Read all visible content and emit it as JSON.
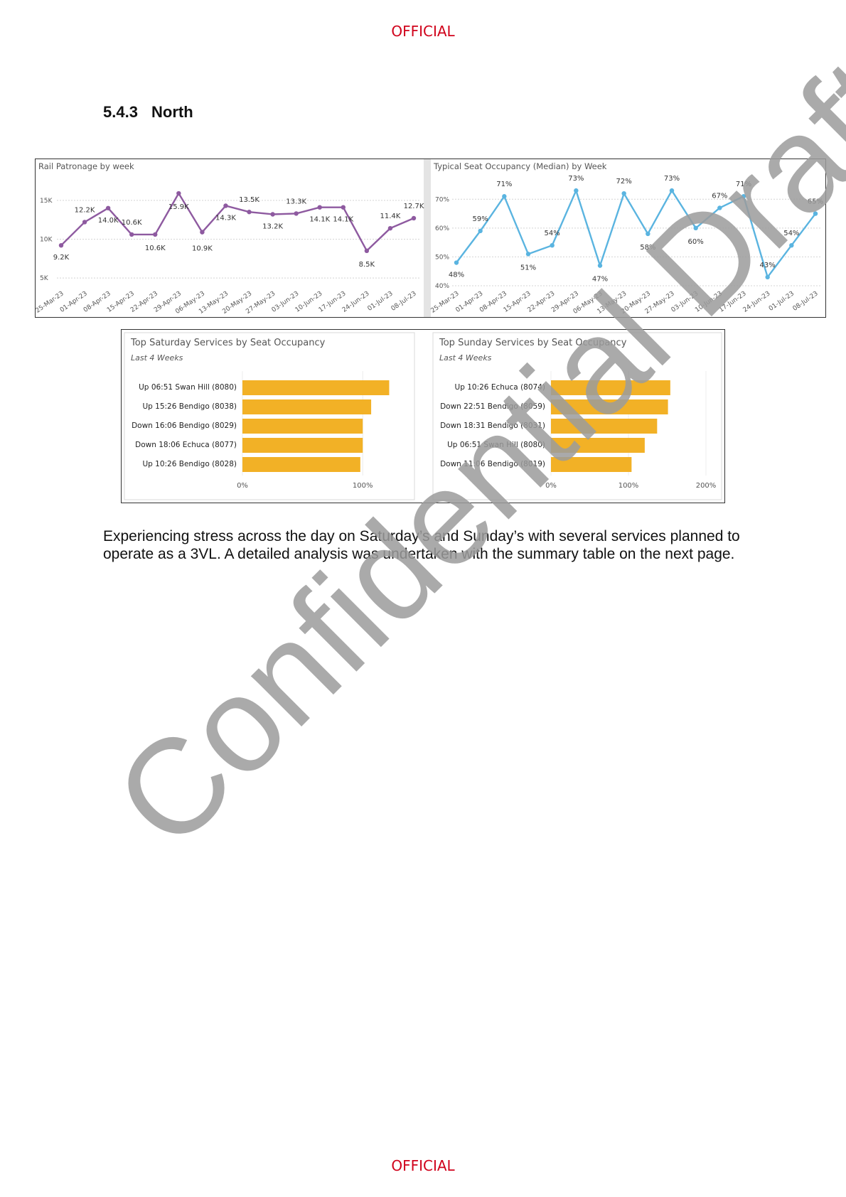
{
  "header": {
    "marking": "OFFICIAL"
  },
  "footer": {
    "marking": "OFFICIAL"
  },
  "section": {
    "number": "5.4.3",
    "title": "North"
  },
  "watermark": {
    "text": "Confidential Draft"
  },
  "body_text": "Experiencing stress across the day on Saturday’s and Sunday’s with several services planned to operate as a 3VL. A detailed analysis was undertaken with the summary table on the next page.",
  "colors": {
    "patronage_line": "#8e5aa0",
    "occupancy_line": "#5ab4e0",
    "bars": "#f2b126"
  },
  "chart_data": [
    {
      "type": "line",
      "title": "Rail Patronage by week",
      "x": [
        "25-Mar-23",
        "01-Apr-23",
        "08-Apr-23",
        "15-Apr-23",
        "22-Apr-23",
        "29-Apr-23",
        "06-May-23",
        "13-May-23",
        "20-May-23",
        "27-May-23",
        "03-Jun-23",
        "10-Jun-23",
        "17-Jun-23",
        "24-Jun-23",
        "01-Jul-23",
        "08-Jul-23"
      ],
      "values": [
        9.2,
        12.2,
        14.0,
        10.6,
        10.6,
        15.9,
        10.9,
        14.3,
        13.5,
        13.2,
        13.3,
        14.1,
        14.1,
        8.5,
        11.4,
        12.7
      ],
      "labels": [
        "9.2K",
        "12.2K",
        "14.0K",
        "10.6K",
        "10.6K",
        "15.9K",
        "10.9K",
        "14.3K",
        "13.5K",
        "13.2K",
        "13.3K",
        "14.1K",
        "14.1K",
        "8.5K",
        "11.4K",
        "12.7K"
      ],
      "yticks": [
        "5K",
        "10K",
        "15K"
      ],
      "ylim": [
        4,
        17
      ]
    },
    {
      "type": "line",
      "title": "Typical Seat Occupancy (Median) by Week",
      "x": [
        "25-Mar-23",
        "01-Apr-23",
        "08-Apr-23",
        "15-Apr-23",
        "22-Apr-23",
        "29-Apr-23",
        "06-May-23",
        "13-May-23",
        "20-May-23",
        "27-May-23",
        "03-Jun-23",
        "10-Jun-23",
        "17-Jun-23",
        "24-Jun-23",
        "01-Jul-23",
        "08-Jul-23"
      ],
      "values": [
        48,
        59,
        71,
        51,
        54,
        73,
        47,
        72,
        58,
        73,
        60,
        67,
        71,
        43,
        54,
        65
      ],
      "labels": [
        "48%",
        "59%",
        "71%",
        "51%",
        "54%",
        "73%",
        "47%",
        "72%",
        "58%",
        "73%",
        "60%",
        "67%",
        "71%",
        "43%",
        "54%",
        "65%"
      ],
      "yticks": [
        "40%",
        "50%",
        "60%",
        "70%"
      ],
      "ylim": [
        40,
        75
      ]
    },
    {
      "type": "bar",
      "title": "Top Saturday Services by Seat Occupancy",
      "subtitle": "Last 4 Weeks",
      "categories": [
        "Up 06:51 Swan Hill (8080)",
        "Up 15:26 Bendigo (8038)",
        "Down 16:06 Bendigo (8029)",
        "Down 18:06 Echuca (8077)",
        "Up 10:26 Bendigo (8028)"
      ],
      "values": [
        122,
        107,
        100,
        100,
        98
      ],
      "xticks": [
        "0%",
        "100%"
      ],
      "xlim": [
        0,
        130
      ]
    },
    {
      "type": "bar",
      "title": "Top Sunday Services by Seat Occupancy",
      "subtitle": "Last 4 Weeks",
      "categories": [
        "Up 10:26 Echuca (8074)",
        "Down 22:51 Bendigo (8059)",
        "Down 18:31 Bendigo (8031)",
        "Up 06:51 Swan Hill (8080)",
        "Down 11:06 Bendigo (8019)"
      ],
      "values": [
        154,
        151,
        137,
        121,
        104
      ],
      "xticks": [
        "0%",
        "100%",
        "200%"
      ],
      "xlim": [
        0,
        200
      ]
    }
  ]
}
